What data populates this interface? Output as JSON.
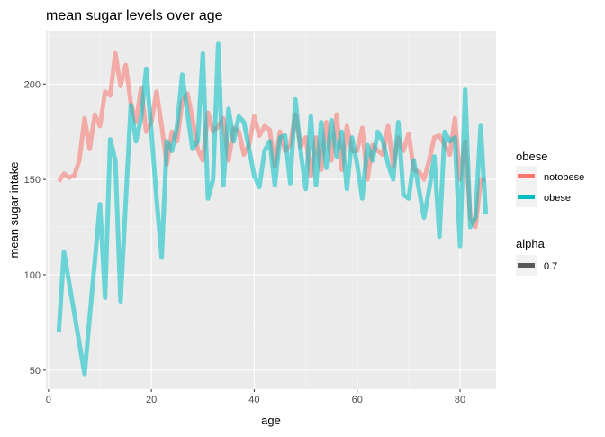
{
  "chart_data": {
    "type": "line",
    "title": "mean sugar levels over age",
    "xlabel": "age",
    "ylabel": "mean sugar intake",
    "xlim": [
      -0.5,
      87
    ],
    "ylim": [
      40,
      228
    ],
    "x_ticks": [
      0,
      20,
      40,
      60,
      80
    ],
    "y_ticks": [
      50,
      100,
      150,
      200
    ],
    "grid": true,
    "background": "#EBEBEB",
    "legend_position": "right",
    "legend": {
      "title": "obese",
      "entries": [
        "notobese",
        "obese"
      ],
      "alpha_title": "alpha",
      "alpha_entries": [
        "0.7"
      ]
    },
    "series": [
      {
        "name": "notobese",
        "color": "#F8766D",
        "x": [
          2,
          3,
          4,
          5,
          6,
          7,
          8,
          9,
          10,
          11,
          12,
          13,
          14,
          15,
          16,
          17,
          18,
          19,
          20,
          21,
          22,
          23,
          24,
          25,
          26,
          27,
          28,
          29,
          30,
          31,
          32,
          33,
          34,
          35,
          36,
          37,
          38,
          39,
          40,
          41,
          42,
          43,
          44,
          45,
          46,
          47,
          48,
          49,
          50,
          51,
          52,
          53,
          54,
          55,
          56,
          57,
          58,
          59,
          60,
          61,
          62,
          63,
          64,
          65,
          66,
          67,
          68,
          69,
          70,
          71,
          72,
          73,
          74,
          75,
          76,
          77,
          78,
          79,
          80,
          81,
          82,
          83,
          84,
          85
        ],
        "values": [
          149,
          153,
          151,
          152,
          160,
          182,
          166,
          184,
          178,
          196,
          194,
          216,
          199,
          210,
          190,
          180,
          198,
          175,
          180,
          196,
          178,
          158,
          175,
          170,
          191,
          195,
          182,
          166,
          160,
          185,
          175,
          178,
          182,
          160,
          177,
          175,
          163,
          168,
          183,
          173,
          178,
          176,
          157,
          175,
          165,
          168,
          184,
          167,
          172,
          152,
          172,
          155,
          180,
          160,
          184,
          155,
          178,
          165,
          165,
          177,
          150,
          168,
          165,
          163,
          178,
          157,
          172,
          165,
          174,
          155,
          154,
          150,
          160,
          172,
          173,
          168,
          163,
          182,
          150,
          170,
          130,
          125,
          150,
          150
        ]
      },
      {
        "name": "obese",
        "color": "#00BFC4",
        "x": [
          2,
          3,
          7,
          10,
          11,
          12,
          13,
          14,
          16,
          17,
          18,
          19,
          20,
          21,
          22,
          23,
          24,
          25,
          26,
          27,
          28,
          29,
          30,
          31,
          32,
          33,
          34,
          35,
          36,
          37,
          38,
          39,
          40,
          41,
          42,
          43,
          44,
          45,
          46,
          47,
          48,
          49,
          50,
          51,
          52,
          53,
          54,
          55,
          56,
          57,
          58,
          59,
          60,
          61,
          62,
          63,
          64,
          65,
          66,
          67,
          68,
          69,
          70,
          71,
          72,
          73,
          74,
          75,
          76,
          77,
          78,
          79,
          80,
          81,
          82,
          83,
          84,
          85
        ],
        "values": [
          70,
          112,
          48,
          137,
          88,
          171,
          160,
          86,
          189,
          170,
          182,
          208,
          175,
          140,
          109,
          170,
          165,
          178,
          205,
          185,
          166,
          170,
          216,
          140,
          150,
          221,
          147,
          187,
          170,
          183,
          180,
          166,
          152,
          146,
          165,
          170,
          147,
          172,
          173,
          148,
          192,
          165,
          145,
          183,
          147,
          180,
          156,
          181,
          162,
          175,
          145,
          172,
          158,
          140,
          168,
          160,
          175,
          170,
          158,
          150,
          180,
          142,
          140,
          160,
          145,
          130,
          145,
          162,
          120,
          175,
          170,
          172,
          115,
          197,
          125,
          130,
          178,
          132
        ]
      }
    ]
  }
}
